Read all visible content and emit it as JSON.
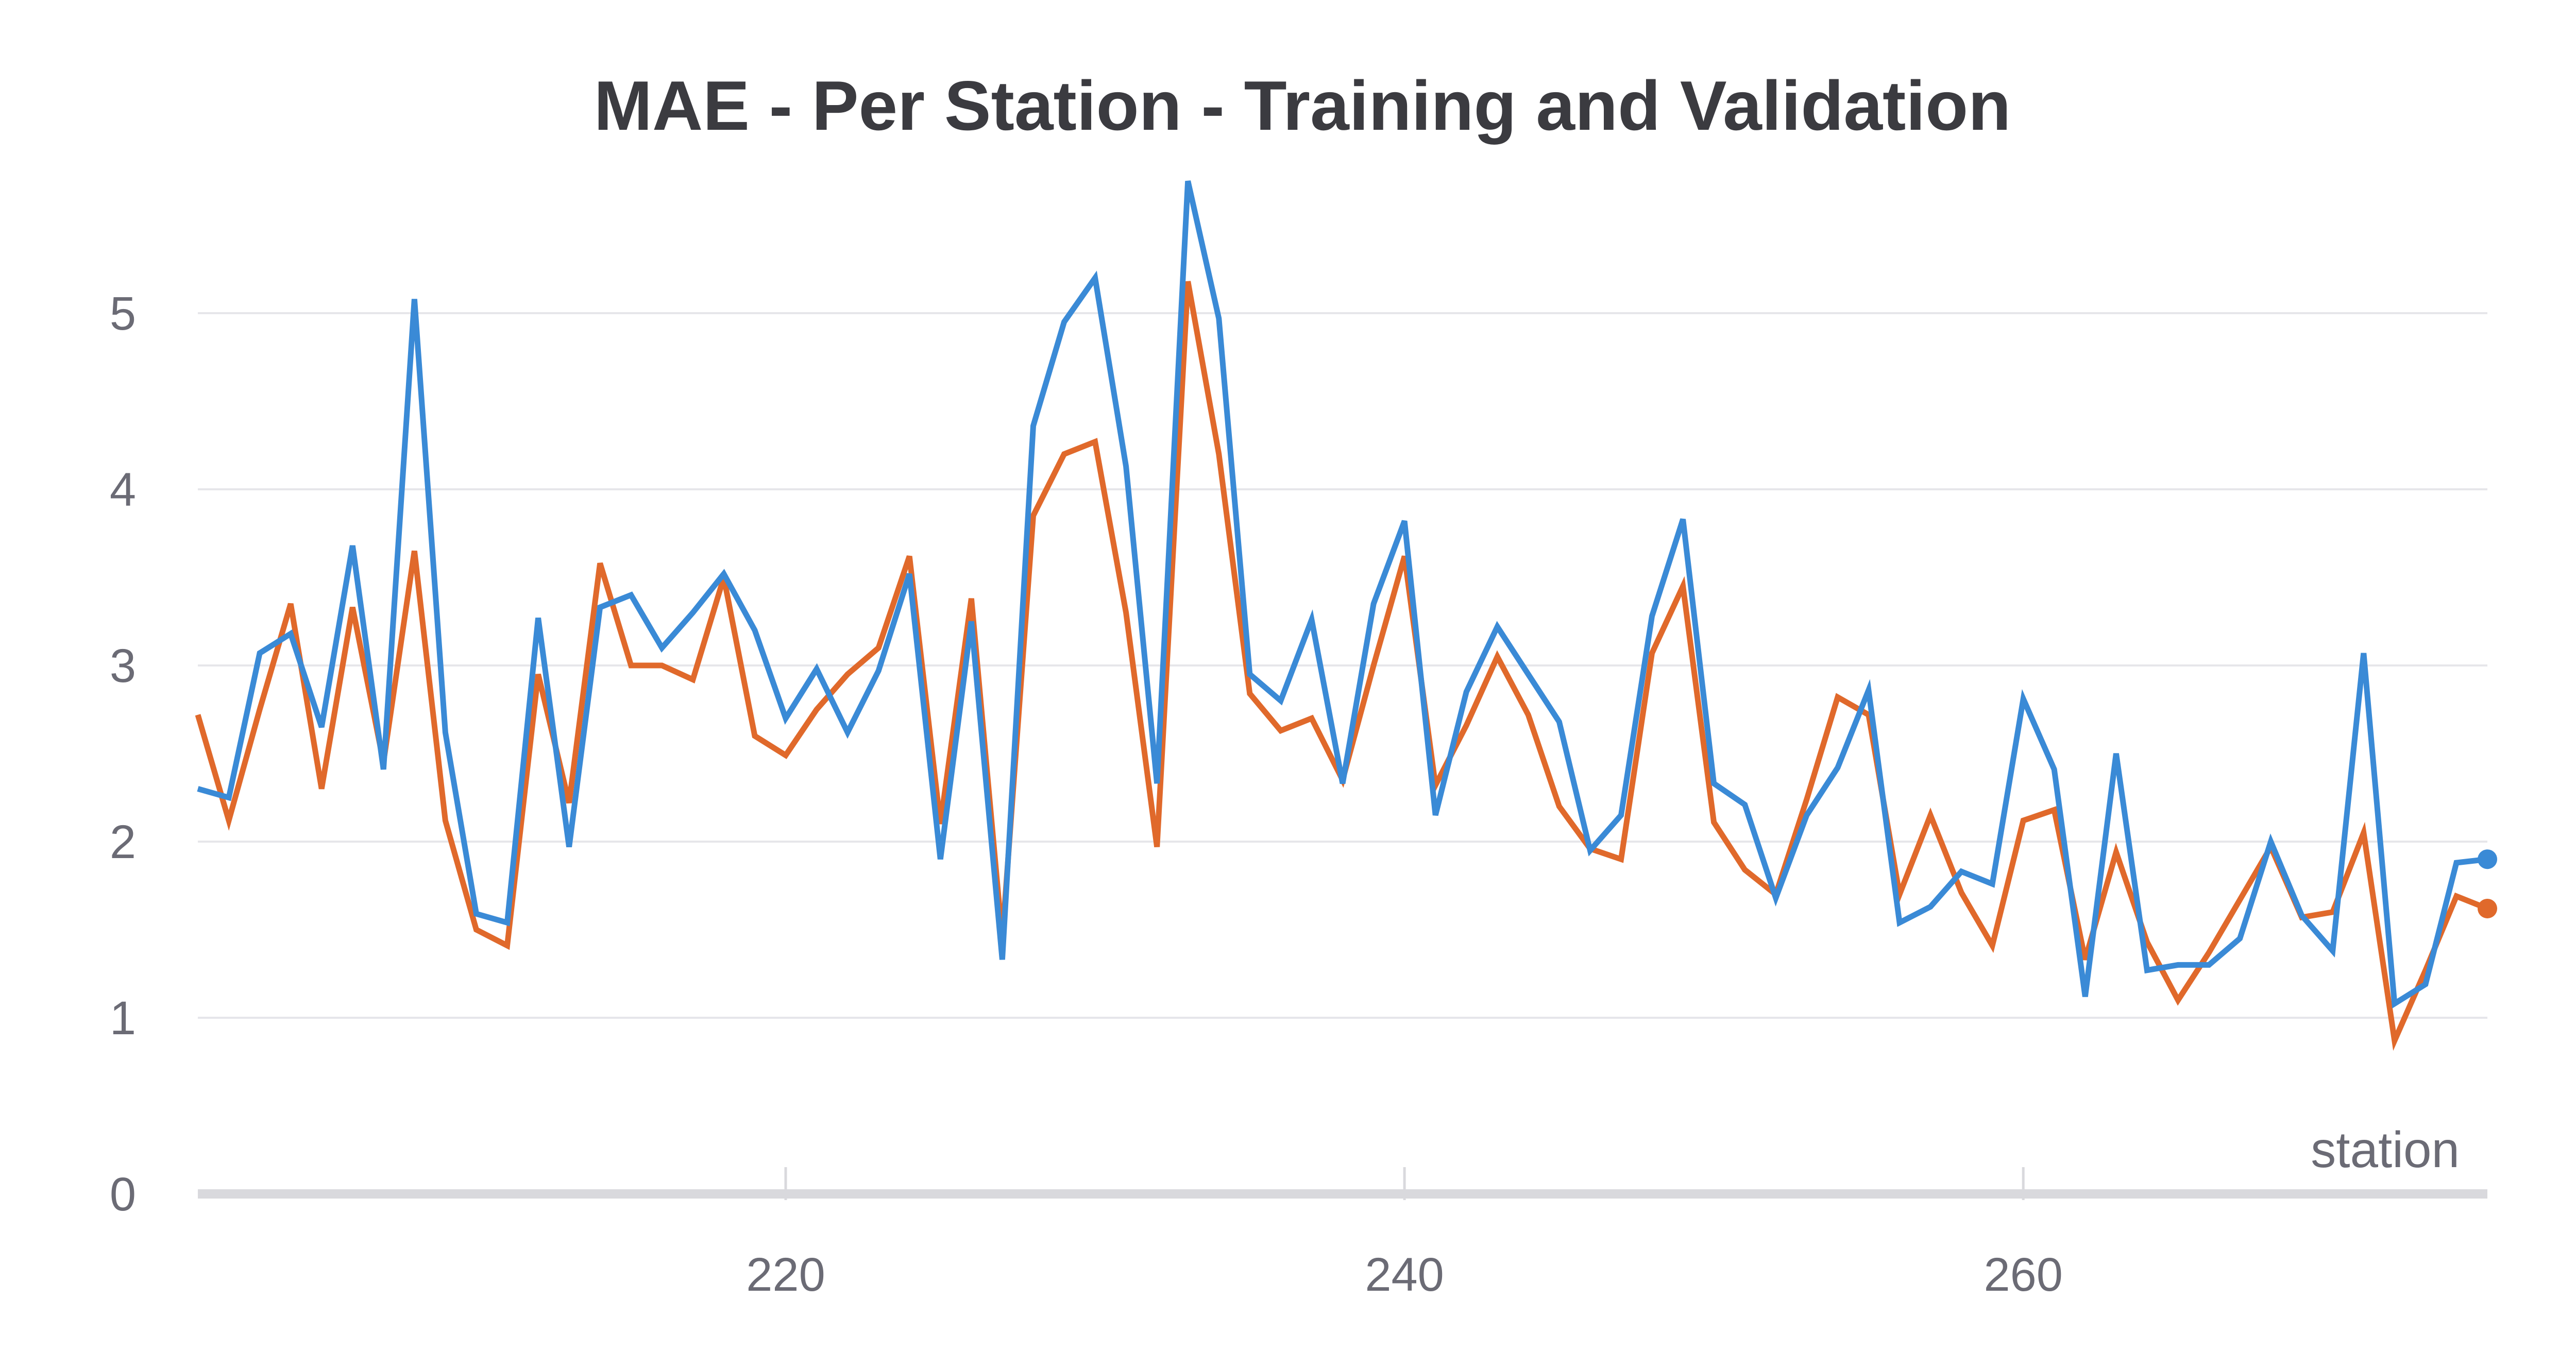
{
  "chart_data": {
    "type": "line",
    "title": "MAE - Per Station - Training and Validation",
    "xlabel": "station",
    "ylabel": "",
    "xlim": [
      201,
      275
    ],
    "ylim": [
      0,
      5.8
    ],
    "x_ticks": [
      220,
      240,
      260
    ],
    "y_ticks": [
      0,
      1,
      2,
      3,
      4,
      5
    ],
    "grid": true,
    "legend": "none",
    "x": [
      201,
      202,
      203,
      204,
      205,
      206,
      207,
      208,
      209,
      210,
      211,
      212,
      213,
      214,
      215,
      216,
      217,
      218,
      219,
      220,
      221,
      222,
      223,
      224,
      225,
      226,
      227,
      228,
      229,
      230,
      231,
      232,
      233,
      234,
      235,
      236,
      237,
      238,
      239,
      240,
      241,
      242,
      243,
      244,
      245,
      246,
      247,
      248,
      249,
      250,
      251,
      252,
      253,
      254,
      255,
      256,
      257,
      258,
      259,
      260,
      261,
      262,
      263,
      264,
      265,
      266,
      267,
      268,
      269,
      270,
      271,
      272,
      273,
      274,
      275
    ],
    "series": [
      {
        "color": "#e0692b",
        "values": [
          2.72,
          2.12,
          2.75,
          3.35,
          2.3,
          3.33,
          2.45,
          3.65,
          2.12,
          1.5,
          1.41,
          2.95,
          2.22,
          3.58,
          3.0,
          3.0,
          2.92,
          3.5,
          2.6,
          2.49,
          2.75,
          2.95,
          3.1,
          3.62,
          2.1,
          3.38,
          1.45,
          3.85,
          4.2,
          4.27,
          3.3,
          1.97,
          5.18,
          4.2,
          2.84,
          2.63,
          2.7,
          2.35,
          3.0,
          3.62,
          2.32,
          2.66,
          3.05,
          2.72,
          2.2,
          1.96,
          1.9,
          3.07,
          3.45,
          2.11,
          1.84,
          1.7,
          2.24,
          2.82,
          2.72,
          1.7,
          2.15,
          1.71,
          1.41,
          2.12,
          2.18,
          1.33,
          1.94,
          1.43,
          1.1,
          1.37,
          1.67,
          1.97,
          1.57,
          1.6,
          2.05,
          0.87,
          1.27,
          1.69,
          1.62
        ]
      },
      {
        "color": "#3a8ad6",
        "values": [
          2.3,
          2.25,
          3.07,
          3.18,
          2.65,
          3.68,
          2.41,
          5.08,
          2.62,
          1.59,
          1.54,
          3.27,
          1.97,
          3.33,
          3.4,
          3.1,
          3.3,
          3.52,
          3.2,
          2.7,
          2.98,
          2.62,
          2.97,
          3.52,
          1.9,
          3.25,
          1.33,
          4.36,
          4.95,
          5.2,
          4.13,
          2.33,
          5.75,
          4.97,
          2.95,
          2.8,
          3.26,
          2.33,
          3.35,
          3.82,
          2.15,
          2.85,
          3.22,
          2.95,
          2.68,
          1.95,
          2.15,
          3.28,
          3.83,
          2.33,
          2.21,
          1.68,
          2.15,
          2.42,
          2.86,
          1.54,
          1.63,
          1.83,
          1.76,
          2.81,
          2.41,
          1.12,
          2.5,
          1.27,
          1.3,
          1.3,
          1.45,
          2.0,
          1.58,
          1.38,
          3.07,
          1.08,
          1.19,
          1.88,
          1.9
        ]
      }
    ]
  }
}
